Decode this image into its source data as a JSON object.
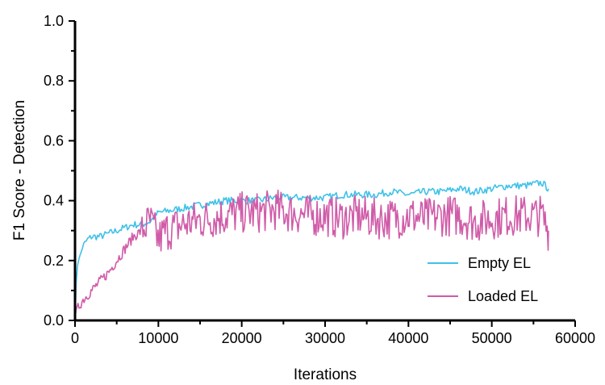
{
  "chart_data": {
    "type": "line",
    "xlabel": "Iterations",
    "ylabel": "F1 Score -  Detection",
    "xlim": [
      0,
      60000
    ],
    "ylim": [
      0,
      1.0
    ],
    "x_ticks": [
      "0",
      "10000",
      "20000",
      "30000",
      "40000",
      "50000",
      "60000"
    ],
    "y_ticks": [
      "0.0",
      "0.2",
      "0.4",
      "0.6",
      "0.8",
      "1.0"
    ],
    "legend_position": "bottom-right",
    "series": [
      {
        "name": "Empty EL",
        "color": "#3fc1e8",
        "x": [
          0,
          200,
          500,
          1000,
          1500,
          2000,
          3000,
          4000,
          5000,
          6000,
          7000,
          8000,
          9000,
          10000,
          12000,
          14000,
          16000,
          18000,
          20000,
          22000,
          24000,
          26000,
          28000,
          30000,
          32000,
          34000,
          36000,
          38000,
          40000,
          42000,
          44000,
          46000,
          48000,
          50000,
          52000,
          54000,
          56000,
          56800
        ],
        "y": [
          0.0,
          0.17,
          0.21,
          0.25,
          0.27,
          0.28,
          0.28,
          0.29,
          0.3,
          0.31,
          0.32,
          0.32,
          0.33,
          0.36,
          0.37,
          0.38,
          0.39,
          0.4,
          0.4,
          0.4,
          0.41,
          0.41,
          0.41,
          0.41,
          0.42,
          0.42,
          0.42,
          0.43,
          0.42,
          0.43,
          0.43,
          0.44,
          0.43,
          0.44,
          0.45,
          0.45,
          0.46,
          0.44
        ]
      },
      {
        "name": "Loaded EL",
        "color": "#d05ba8",
        "x": [
          0,
          200,
          500,
          1000,
          2000,
          3000,
          4000,
          5000,
          6000,
          7000,
          8000,
          9000,
          10000,
          11000,
          12000,
          14000,
          16000,
          18000,
          20000,
          22000,
          24000,
          26000,
          28000,
          30000,
          32000,
          34000,
          36000,
          38000,
          40000,
          42000,
          44000,
          46000,
          48000,
          50000,
          52000,
          54000,
          56000,
          56800
        ],
        "y": [
          0.0,
          0.03,
          0.05,
          0.07,
          0.1,
          0.13,
          0.16,
          0.2,
          0.24,
          0.28,
          0.3,
          0.33,
          0.27,
          0.3,
          0.31,
          0.33,
          0.34,
          0.35,
          0.36,
          0.36,
          0.37,
          0.36,
          0.35,
          0.35,
          0.34,
          0.35,
          0.34,
          0.34,
          0.35,
          0.34,
          0.35,
          0.35,
          0.33,
          0.34,
          0.35,
          0.35,
          0.35,
          0.3
        ]
      }
    ]
  }
}
